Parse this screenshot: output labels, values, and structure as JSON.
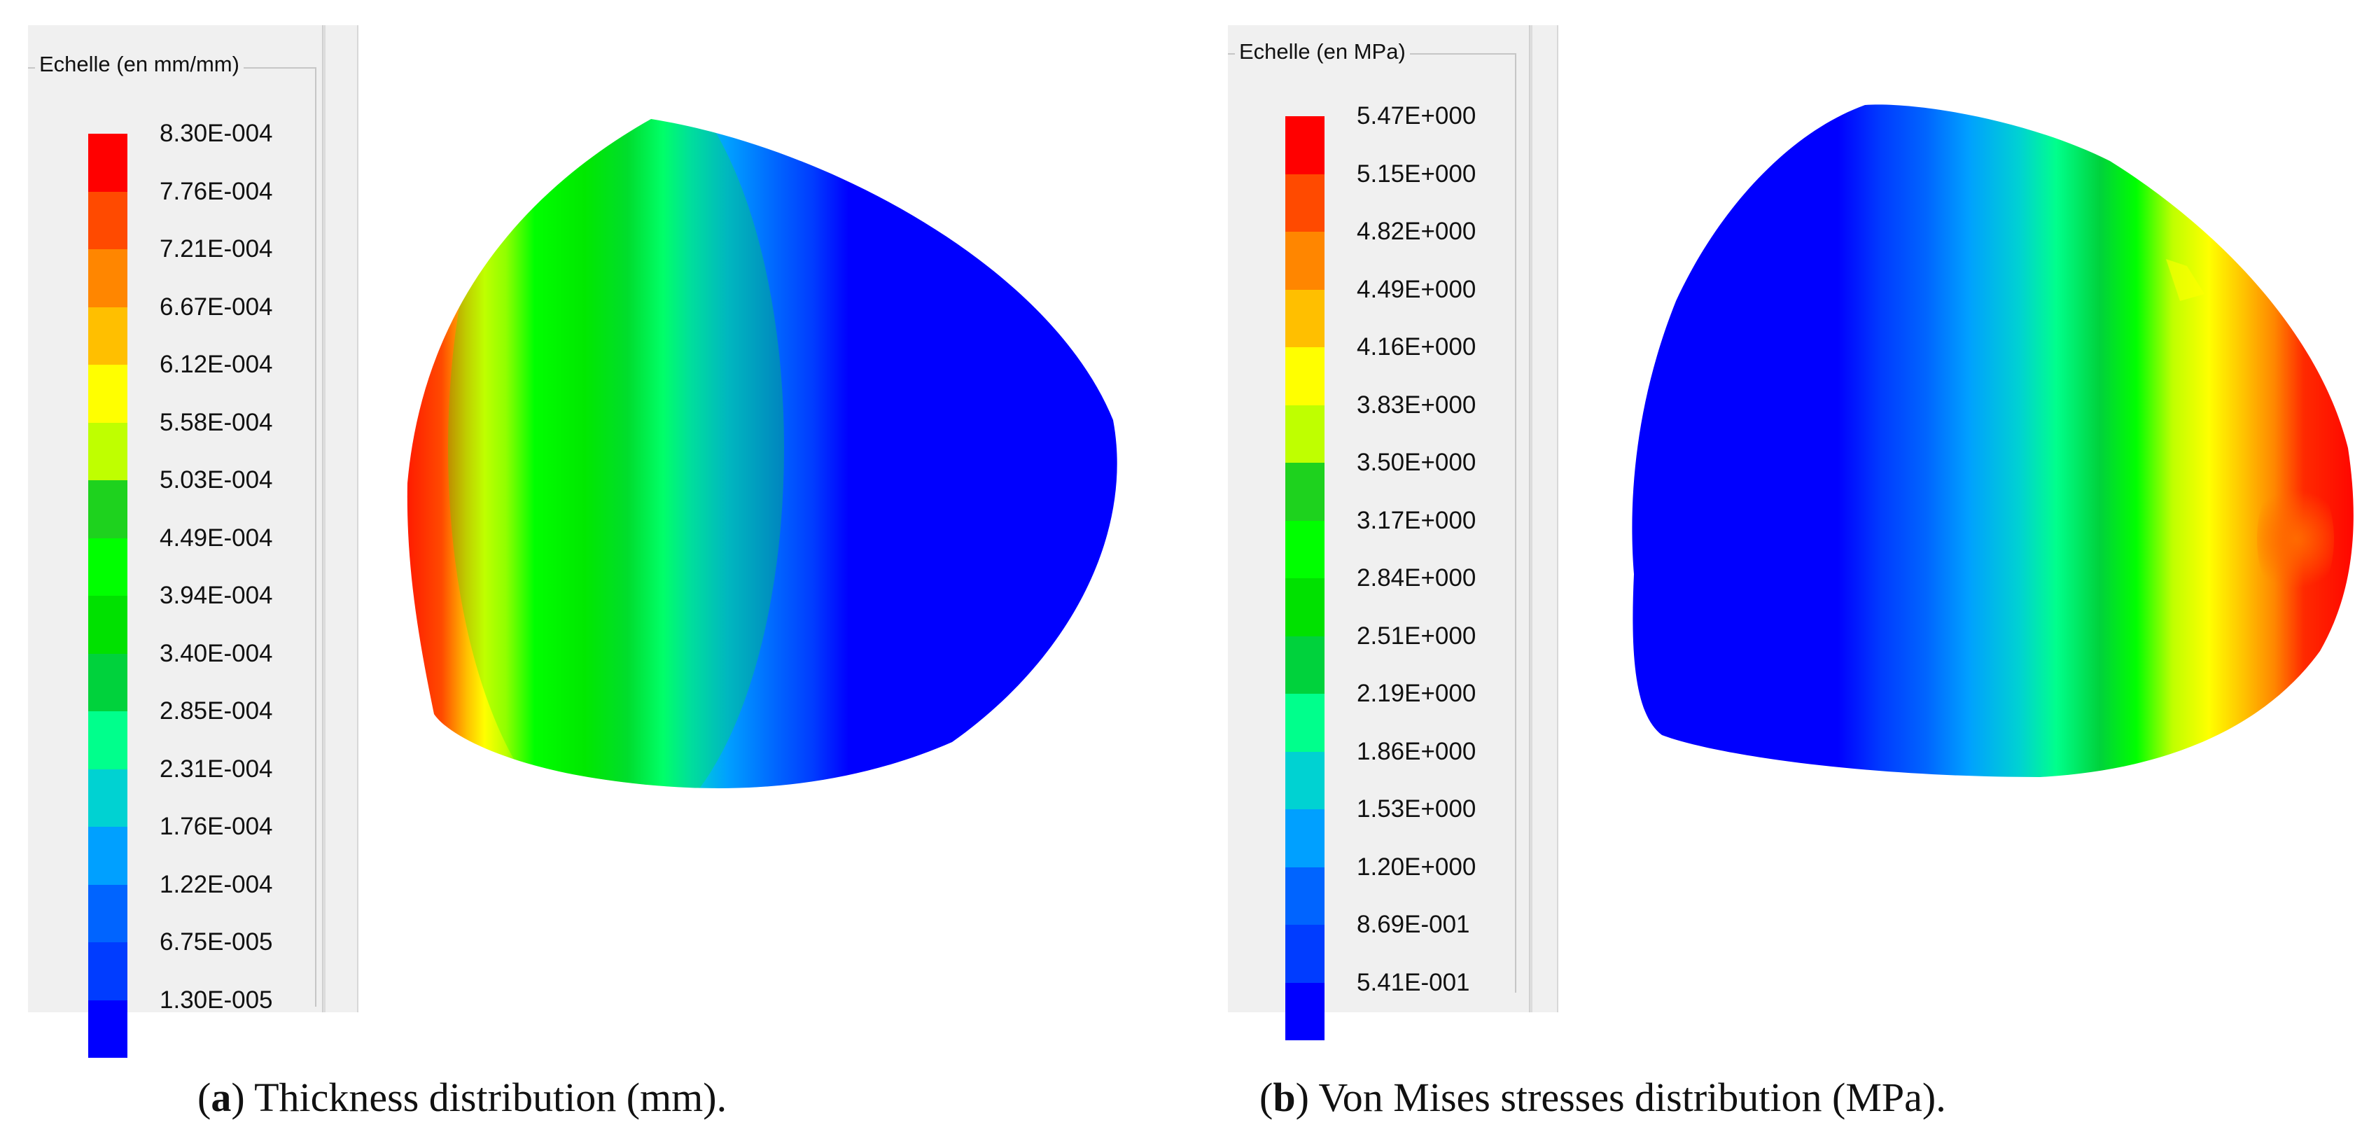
{
  "panel_a": {
    "legend_title": "Echelle (en mm/mm)",
    "legend_labels": [
      "8.30E-004",
      "7.76E-004",
      "7.21E-004",
      "6.67E-004",
      "6.12E-004",
      "5.58E-004",
      "5.03E-004",
      "4.49E-004",
      "3.94E-004",
      "3.40E-004",
      "2.85E-004",
      "2.31E-004",
      "1.76E-004",
      "1.22E-004",
      "6.75E-005",
      "1.30E-005"
    ],
    "legend_colors": [
      "#ff0000",
      "#ff4a00",
      "#ff8600",
      "#ffbf00",
      "#ffff00",
      "#bfff00",
      "#1ed21e",
      "#00ff00",
      "#00e100",
      "#00d23c",
      "#00ff8c",
      "#00d2d2",
      "#00a0ff",
      "#0064ff",
      "#003cff",
      "#0000ff"
    ],
    "caption_letter": "a",
    "caption_text": "Thickness distribution (mm)."
  },
  "panel_b": {
    "legend_title": "Echelle (en MPa)",
    "legend_labels": [
      "5.47E+000",
      "5.15E+000",
      "4.82E+000",
      "4.49E+000",
      "4.16E+000",
      "3.83E+000",
      "3.50E+000",
      "3.17E+000",
      "2.84E+000",
      "2.51E+000",
      "2.19E+000",
      "1.86E+000",
      "1.53E+000",
      "1.20E+000",
      "8.69E-001",
      "5.41E-001"
    ],
    "legend_colors": [
      "#ff0000",
      "#ff4a00",
      "#ff8600",
      "#ffbf00",
      "#ffff00",
      "#bfff00",
      "#1ed21e",
      "#00ff00",
      "#00e100",
      "#00d23c",
      "#00ff8c",
      "#00d2d2",
      "#00a0ff",
      "#0064ff",
      "#003cff",
      "#0000ff"
    ],
    "caption_letter": "b",
    "caption_text": "Von Mises stresses distribution (MPa)."
  }
}
